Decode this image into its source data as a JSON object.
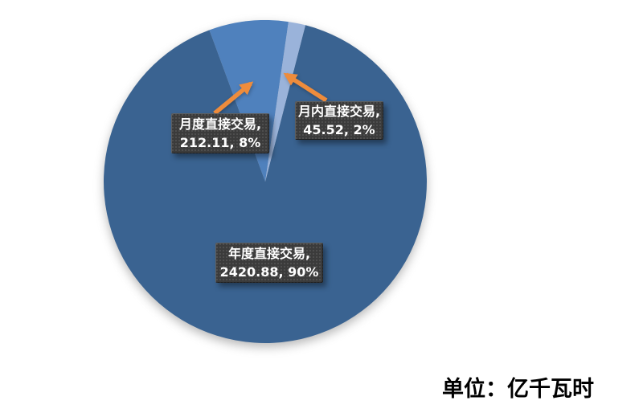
{
  "chart_data": {
    "type": "pie",
    "title": "",
    "unit_label": "单位：亿千瓦时",
    "legend": "none",
    "slices": [
      {
        "key": "annual",
        "name": "年度直接交易",
        "value": 2420.88,
        "percent": 90,
        "label_line1": "年度直接交易,",
        "label_line2": "2420.88, 90%",
        "color": "#3a6391"
      },
      {
        "key": "monthly",
        "name": "月度直接交易",
        "value": 212.11,
        "percent": 8,
        "label_line1": "月度直接交易,",
        "label_line2": "212.11, 8%",
        "color": "#4f81bd"
      },
      {
        "key": "intramonth",
        "name": "月内直接交易",
        "value": 45.52,
        "percent": 2,
        "label_line1": "月内直接交易,",
        "label_line2": "45.52, 2%",
        "color": "#9ab3da"
      }
    ],
    "layout": {
      "start_angle_deg": 14.4,
      "clockwise": true,
      "callout_color": "#ee8c3c",
      "label_bg": "#3b3b3b",
      "label_text_color": "#ffffff",
      "background": "#ffffff"
    }
  }
}
